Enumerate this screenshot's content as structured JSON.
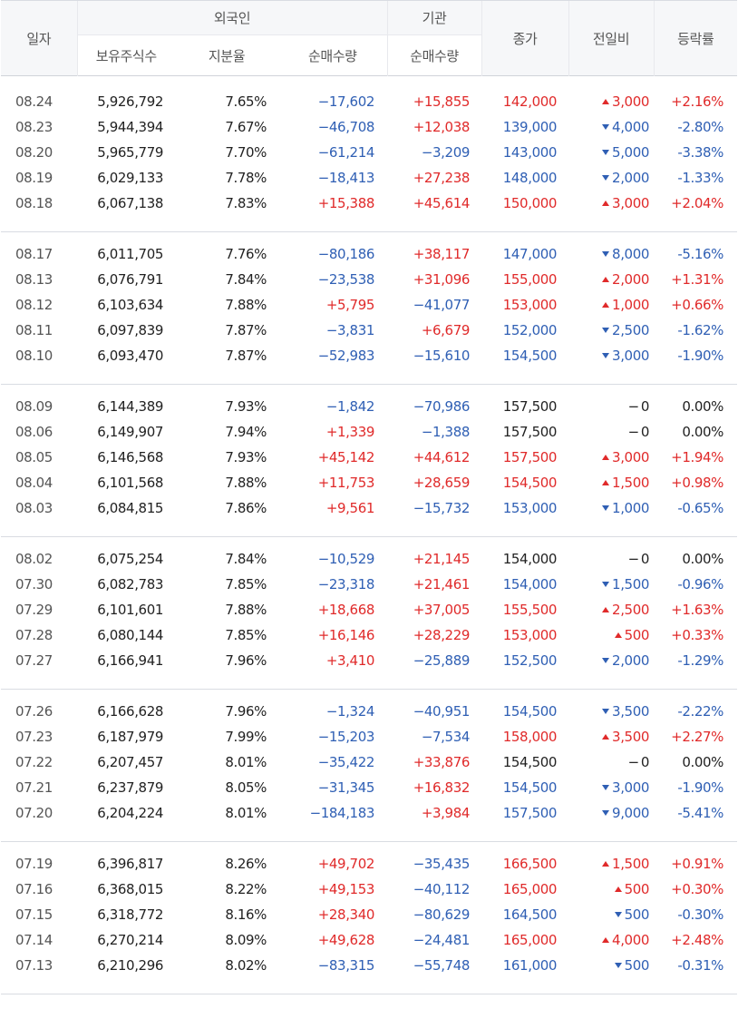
{
  "headers": {
    "date": "일자",
    "foreign": "외국인",
    "institution": "기관",
    "holdings": "보유주식수",
    "ratio": "지분율",
    "foreign_net": "순매수량",
    "inst_net": "순매수량",
    "close": "종가",
    "change": "전일비",
    "rate": "등락률"
  },
  "colors": {
    "up": "#e02a2a",
    "down": "#2f5fb4",
    "neutral": "#222222"
  },
  "groups": [
    [
      {
        "date": "08.24",
        "holdings": "5,926,792",
        "ratio": "7.65%",
        "foreign_net": "−17,602",
        "inst_net": "+15,855",
        "close": "142,000",
        "change": "3,000",
        "rate": "+2.16%",
        "dir": "up",
        "fdir": "down",
        "idir": "up"
      },
      {
        "date": "08.23",
        "holdings": "5,944,394",
        "ratio": "7.67%",
        "foreign_net": "−46,708",
        "inst_net": "+12,038",
        "close": "139,000",
        "change": "4,000",
        "rate": "-2.80%",
        "dir": "down",
        "fdir": "down",
        "idir": "up"
      },
      {
        "date": "08.20",
        "holdings": "5,965,779",
        "ratio": "7.70%",
        "foreign_net": "−61,214",
        "inst_net": "−3,209",
        "close": "143,000",
        "change": "5,000",
        "rate": "-3.38%",
        "dir": "down",
        "fdir": "down",
        "idir": "down"
      },
      {
        "date": "08.19",
        "holdings": "6,029,133",
        "ratio": "7.78%",
        "foreign_net": "−18,413",
        "inst_net": "+27,238",
        "close": "148,000",
        "change": "2,000",
        "rate": "-1.33%",
        "dir": "down",
        "fdir": "down",
        "idir": "up"
      },
      {
        "date": "08.18",
        "holdings": "6,067,138",
        "ratio": "7.83%",
        "foreign_net": "+15,388",
        "inst_net": "+45,614",
        "close": "150,000",
        "change": "3,000",
        "rate": "+2.04%",
        "dir": "up",
        "fdir": "up",
        "idir": "up"
      }
    ],
    [
      {
        "date": "08.17",
        "holdings": "6,011,705",
        "ratio": "7.76%",
        "foreign_net": "−80,186",
        "inst_net": "+38,117",
        "close": "147,000",
        "change": "8,000",
        "rate": "-5.16%",
        "dir": "down",
        "fdir": "down",
        "idir": "up"
      },
      {
        "date": "08.13",
        "holdings": "6,076,791",
        "ratio": "7.84%",
        "foreign_net": "−23,538",
        "inst_net": "+31,096",
        "close": "155,000",
        "change": "2,000",
        "rate": "+1.31%",
        "dir": "up",
        "fdir": "down",
        "idir": "up"
      },
      {
        "date": "08.12",
        "holdings": "6,103,634",
        "ratio": "7.88%",
        "foreign_net": "+5,795",
        "inst_net": "−41,077",
        "close": "153,000",
        "change": "1,000",
        "rate": "+0.66%",
        "dir": "up",
        "fdir": "up",
        "idir": "down"
      },
      {
        "date": "08.11",
        "holdings": "6,097,839",
        "ratio": "7.87%",
        "foreign_net": "−3,831",
        "inst_net": "+6,679",
        "close": "152,000",
        "change": "2,500",
        "rate": "-1.62%",
        "dir": "down",
        "fdir": "down",
        "idir": "up"
      },
      {
        "date": "08.10",
        "holdings": "6,093,470",
        "ratio": "7.87%",
        "foreign_net": "−52,983",
        "inst_net": "−15,610",
        "close": "154,500",
        "change": "3,000",
        "rate": "-1.90%",
        "dir": "down",
        "fdir": "down",
        "idir": "down"
      }
    ],
    [
      {
        "date": "08.09",
        "holdings": "6,144,389",
        "ratio": "7.93%",
        "foreign_net": "−1,842",
        "inst_net": "−70,986",
        "close": "157,500",
        "change": "0",
        "rate": "0.00%",
        "dir": "flat",
        "fdir": "down",
        "idir": "down"
      },
      {
        "date": "08.06",
        "holdings": "6,149,907",
        "ratio": "7.94%",
        "foreign_net": "+1,339",
        "inst_net": "−1,388",
        "close": "157,500",
        "change": "0",
        "rate": "0.00%",
        "dir": "flat",
        "fdir": "up",
        "idir": "down"
      },
      {
        "date": "08.05",
        "holdings": "6,146,568",
        "ratio": "7.93%",
        "foreign_net": "+45,142",
        "inst_net": "+44,612",
        "close": "157,500",
        "change": "3,000",
        "rate": "+1.94%",
        "dir": "up",
        "fdir": "up",
        "idir": "up"
      },
      {
        "date": "08.04",
        "holdings": "6,101,568",
        "ratio": "7.88%",
        "foreign_net": "+11,753",
        "inst_net": "+28,659",
        "close": "154,500",
        "change": "1,500",
        "rate": "+0.98%",
        "dir": "up",
        "fdir": "up",
        "idir": "up"
      },
      {
        "date": "08.03",
        "holdings": "6,084,815",
        "ratio": "7.86%",
        "foreign_net": "+9,561",
        "inst_net": "−15,732",
        "close": "153,000",
        "change": "1,000",
        "rate": "-0.65%",
        "dir": "down",
        "fdir": "up",
        "idir": "down"
      }
    ],
    [
      {
        "date": "08.02",
        "holdings": "6,075,254",
        "ratio": "7.84%",
        "foreign_net": "−10,529",
        "inst_net": "+21,145",
        "close": "154,000",
        "change": "0",
        "rate": "0.00%",
        "dir": "flat",
        "fdir": "down",
        "idir": "up"
      },
      {
        "date": "07.30",
        "holdings": "6,082,783",
        "ratio": "7.85%",
        "foreign_net": "−23,318",
        "inst_net": "+21,461",
        "close": "154,000",
        "change": "1,500",
        "rate": "-0.96%",
        "dir": "down",
        "fdir": "down",
        "idir": "up"
      },
      {
        "date": "07.29",
        "holdings": "6,101,601",
        "ratio": "7.88%",
        "foreign_net": "+18,668",
        "inst_net": "+37,005",
        "close": "155,500",
        "change": "2,500",
        "rate": "+1.63%",
        "dir": "up",
        "fdir": "up",
        "idir": "up"
      },
      {
        "date": "07.28",
        "holdings": "6,080,144",
        "ratio": "7.85%",
        "foreign_net": "+16,146",
        "inst_net": "+28,229",
        "close": "153,000",
        "change": "500",
        "rate": "+0.33%",
        "dir": "up",
        "fdir": "up",
        "idir": "up"
      },
      {
        "date": "07.27",
        "holdings": "6,166,941",
        "ratio": "7.96%",
        "foreign_net": "+3,410",
        "inst_net": "−25,889",
        "close": "152,500",
        "change": "2,000",
        "rate": "-1.29%",
        "dir": "down",
        "fdir": "up",
        "idir": "down"
      }
    ],
    [
      {
        "date": "07.26",
        "holdings": "6,166,628",
        "ratio": "7.96%",
        "foreign_net": "−1,324",
        "inst_net": "−40,951",
        "close": "154,500",
        "change": "3,500",
        "rate": "-2.22%",
        "dir": "down",
        "fdir": "down",
        "idir": "down"
      },
      {
        "date": "07.23",
        "holdings": "6,187,979",
        "ratio": "7.99%",
        "foreign_net": "−15,203",
        "inst_net": "−7,534",
        "close": "158,000",
        "change": "3,500",
        "rate": "+2.27%",
        "dir": "up",
        "fdir": "down",
        "idir": "down"
      },
      {
        "date": "07.22",
        "holdings": "6,207,457",
        "ratio": "8.01%",
        "foreign_net": "−35,422",
        "inst_net": "+33,876",
        "close": "154,500",
        "change": "0",
        "rate": "0.00%",
        "dir": "flat",
        "fdir": "down",
        "idir": "up"
      },
      {
        "date": "07.21",
        "holdings": "6,237,879",
        "ratio": "8.05%",
        "foreign_net": "−31,345",
        "inst_net": "+16,832",
        "close": "154,500",
        "change": "3,000",
        "rate": "-1.90%",
        "dir": "down",
        "fdir": "down",
        "idir": "up"
      },
      {
        "date": "07.20",
        "holdings": "6,204,224",
        "ratio": "8.01%",
        "foreign_net": "−184,183",
        "inst_net": "+3,984",
        "close": "157,500",
        "change": "9,000",
        "rate": "-5.41%",
        "dir": "down",
        "fdir": "down",
        "idir": "up"
      }
    ],
    [
      {
        "date": "07.19",
        "holdings": "6,396,817",
        "ratio": "8.26%",
        "foreign_net": "+49,702",
        "inst_net": "−35,435",
        "close": "166,500",
        "change": "1,500",
        "rate": "+0.91%",
        "dir": "up",
        "fdir": "up",
        "idir": "down"
      },
      {
        "date": "07.16",
        "holdings": "6,368,015",
        "ratio": "8.22%",
        "foreign_net": "+49,153",
        "inst_net": "−40,112",
        "close": "165,000",
        "change": "500",
        "rate": "+0.30%",
        "dir": "up",
        "fdir": "up",
        "idir": "down"
      },
      {
        "date": "07.15",
        "holdings": "6,318,772",
        "ratio": "8.16%",
        "foreign_net": "+28,340",
        "inst_net": "−80,629",
        "close": "164,500",
        "change": "500",
        "rate": "-0.30%",
        "dir": "down",
        "fdir": "up",
        "idir": "down"
      },
      {
        "date": "07.14",
        "holdings": "6,270,214",
        "ratio": "8.09%",
        "foreign_net": "+49,628",
        "inst_net": "−24,481",
        "close": "165,000",
        "change": "4,000",
        "rate": "+2.48%",
        "dir": "up",
        "fdir": "up",
        "idir": "down"
      },
      {
        "date": "07.13",
        "holdings": "6,210,296",
        "ratio": "8.02%",
        "foreign_net": "−83,315",
        "inst_net": "−55,748",
        "close": "161,000",
        "change": "500",
        "rate": "-0.31%",
        "dir": "down",
        "fdir": "down",
        "idir": "down"
      }
    ]
  ]
}
